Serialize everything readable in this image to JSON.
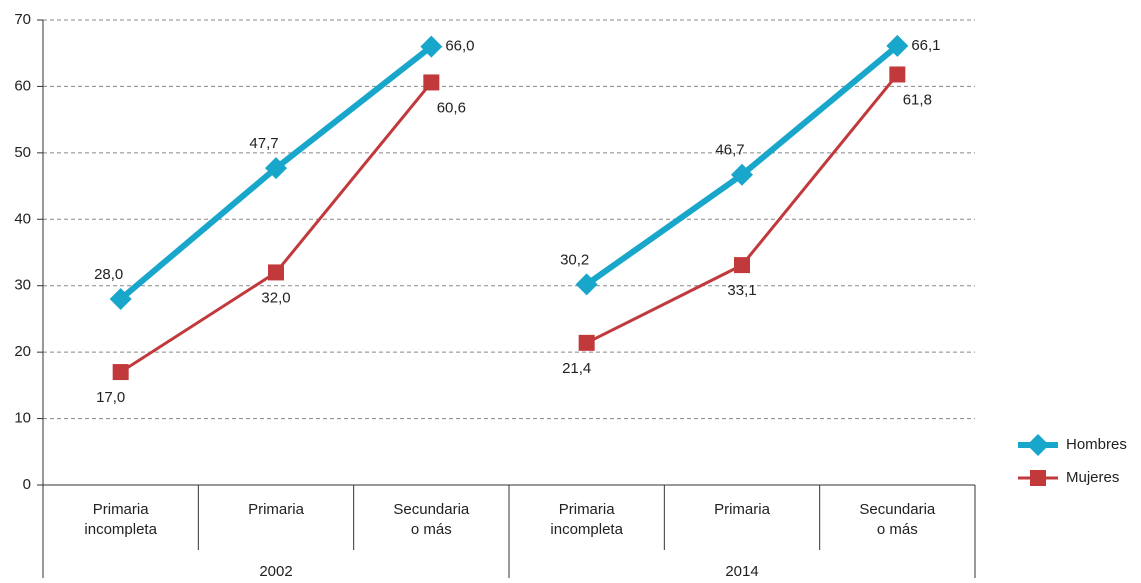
{
  "chart_data": {
    "type": "line",
    "categories": [
      "Primaria incompleta",
      "Primaria",
      "Secundaria o más",
      "Primaria incompleta",
      "Primaria",
      "Secundaria o más"
    ],
    "groups": [
      "2002",
      "2014"
    ],
    "series": [
      {
        "name": "Hombres",
        "color": "#19a6cb",
        "marker": "diamond",
        "values": [
          28.0,
          47.7,
          66.0,
          30.2,
          46.7,
          66.1
        ],
        "value_labels": [
          "28,0",
          "47,7",
          "66,0",
          "30,2",
          "46,7",
          "66,1"
        ]
      },
      {
        "name": "Mujeres",
        "color": "#c2393c",
        "marker": "square",
        "values": [
          17.0,
          32.0,
          60.6,
          21.4,
          33.1,
          61.8
        ],
        "value_labels": [
          "17,0",
          "32,0",
          "60,6",
          "21,4",
          "33,1",
          "61,8"
        ]
      }
    ],
    "ylim": [
      0,
      70
    ],
    "yticks": [
      0,
      10,
      20,
      30,
      40,
      50,
      60,
      70
    ],
    "grid": true,
    "legend": "right"
  }
}
